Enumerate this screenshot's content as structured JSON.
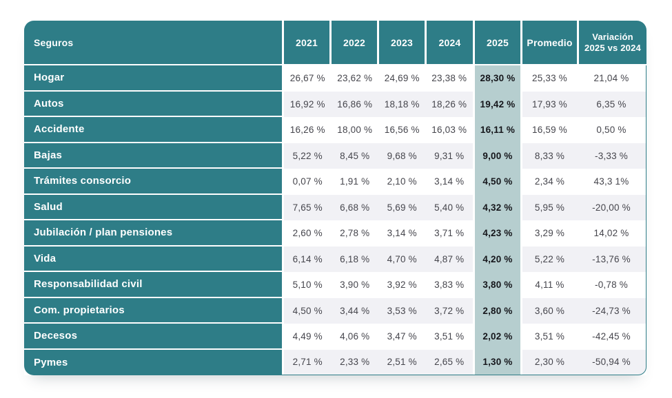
{
  "colors": {
    "teal": "#2e7d87",
    "highlight_2025": "#b6cecf",
    "row_alt": "#f1f1f5",
    "value_text": "#45454c",
    "bold_value_text": "#15161b"
  },
  "table": {
    "header": {
      "columns": [
        "Seguros",
        "2021",
        "2022",
        "2023",
        "2024",
        "2025",
        "Promedio",
        "Variación 2025 vs 2024"
      ]
    },
    "rows": [
      {
        "label": "Hogar",
        "values": [
          "26,67 %",
          "23,62 %",
          "24,69 %",
          "23,38 %",
          "28,30 %",
          "25,33 %",
          "21,04 %"
        ]
      },
      {
        "label": "Autos",
        "values": [
          "16,92 %",
          "16,86 %",
          "18,18 %",
          "18,26 %",
          "19,42 %",
          "17,93 %",
          "6,35 %"
        ]
      },
      {
        "label": "Accidente",
        "values": [
          "16,26 %",
          "18,00 %",
          "16,56 %",
          "16,03 %",
          "16,11 %",
          "16,59 %",
          "0,50 %"
        ]
      },
      {
        "label": "Bajas",
        "values": [
          "5,22 %",
          "8,45 %",
          "9,68 %",
          "9,31 %",
          "9,00 %",
          "8,33 %",
          "-3,33 %"
        ]
      },
      {
        "label": "Trámites consorcio",
        "values": [
          "0,07 %",
          "1,91 %",
          "2,10 %",
          "3,14 %",
          "4,50 %",
          "2,34 %",
          "43,3 1%"
        ]
      },
      {
        "label": "Salud",
        "values": [
          "7,65 %",
          "6,68 %",
          "5,69 %",
          "5,40 %",
          "4,32 %",
          "5,95 %",
          "-20,00 %"
        ]
      },
      {
        "label": "Jubilación / plan pensiones",
        "values": [
          "2,60 %",
          "2,78 %",
          "3,14 %",
          "3,71 %",
          "4,23 %",
          "3,29 %",
          "14,02 %"
        ]
      },
      {
        "label": "Vida",
        "values": [
          "6,14 %",
          "6,18 %",
          "4,70 %",
          "4,87 %",
          "4,20 %",
          "5,22 %",
          "-13,76 %"
        ]
      },
      {
        "label": "Responsabilidad civil",
        "values": [
          "5,10 %",
          "3,90 %",
          "3,92 %",
          "3,83 %",
          "3,80 %",
          "4,11 %",
          "-0,78 %"
        ]
      },
      {
        "label": "Com. propietarios",
        "values": [
          "4,50 %",
          "3,44 %",
          "3,53 %",
          "3,72 %",
          "2,80 %",
          "3,60 %",
          "-24,73 %"
        ]
      },
      {
        "label": "Decesos",
        "values": [
          "4,49 %",
          "4,06 %",
          "3,47 %",
          "3,51 %",
          "2,02 %",
          "3,51 %",
          "-42,45 %"
        ]
      },
      {
        "label": "Pymes",
        "values": [
          "2,71 %",
          "2,33 %",
          "2,51 %",
          "2,65 %",
          "1,30 %",
          "2,30 %",
          "-50,94 %"
        ]
      }
    ]
  },
  "chart_data": {
    "type": "table",
    "title": "Seguros",
    "columns": [
      "Seguros",
      "2021",
      "2022",
      "2023",
      "2024",
      "2025",
      "Promedio",
      "Variación 2025 vs 2024"
    ],
    "rows": [
      [
        "Hogar",
        "26,67 %",
        "23,62 %",
        "24,69 %",
        "23,38 %",
        "28,30 %",
        "25,33 %",
        "21,04 %"
      ],
      [
        "Autos",
        "16,92 %",
        "16,86 %",
        "18,18 %",
        "18,26 %",
        "19,42 %",
        "17,93 %",
        "6,35 %"
      ],
      [
        "Accidente",
        "16,26 %",
        "18,00 %",
        "16,56 %",
        "16,03 %",
        "16,11 %",
        "16,59 %",
        "0,50 %"
      ],
      [
        "Bajas",
        "5,22 %",
        "8,45 %",
        "9,68 %",
        "9,31 %",
        "9,00 %",
        "8,33 %",
        "-3,33 %"
      ],
      [
        "Trámites consorcio",
        "0,07 %",
        "1,91 %",
        "2,10 %",
        "3,14 %",
        "4,50 %",
        "2,34 %",
        "43,3 1%"
      ],
      [
        "Salud",
        "7,65 %",
        "6,68 %",
        "5,69 %",
        "5,40 %",
        "4,32 %",
        "5,95 %",
        "-20,00 %"
      ],
      [
        "Jubilación / plan pensiones",
        "2,60 %",
        "2,78 %",
        "3,14 %",
        "3,71 %",
        "4,23 %",
        "3,29 %",
        "14,02 %"
      ],
      [
        "Vida",
        "6,14 %",
        "6,18 %",
        "4,70 %",
        "4,87 %",
        "4,20 %",
        "5,22 %",
        "-13,76 %"
      ],
      [
        "Responsabilidad civil",
        "5,10 %",
        "3,90 %",
        "3,92 %",
        "3,83 %",
        "3,80 %",
        "4,11 %",
        "-0,78 %"
      ],
      [
        "Com. propietarios",
        "4,50 %",
        "3,44 %",
        "3,53 %",
        "3,72 %",
        "2,80 %",
        "3,60 %",
        "-24,73 %"
      ],
      [
        "Decesos",
        "4,49 %",
        "4,06 %",
        "3,47 %",
        "3,51 %",
        "2,02 %",
        "3,51 %",
        "-42,45 %"
      ],
      [
        "Pymes",
        "2,71 %",
        "2,33 %",
        "2,51 %",
        "2,65 %",
        "1,30 %",
        "2,30 %",
        "-50,94 %"
      ]
    ],
    "layout_hints": {
      "highlighted_column": "2025",
      "alternating_row_shading": true,
      "header_style": "teal solid, white bold text"
    }
  }
}
